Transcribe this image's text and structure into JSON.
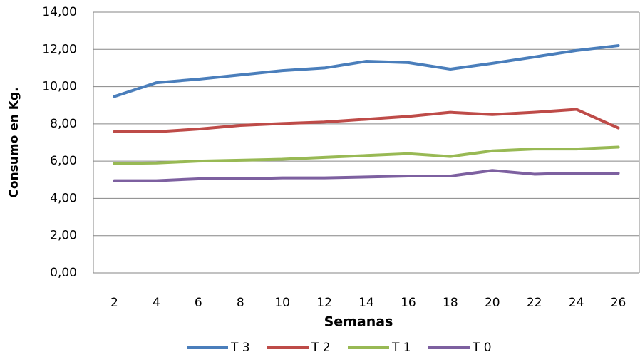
{
  "chart_data": {
    "type": "line",
    "x_label": "Semanas",
    "y_label": "Consumo en Kg.",
    "categories": [
      "2",
      "4",
      "6",
      "8",
      "10",
      "12",
      "14",
      "16",
      "18",
      "20",
      "22",
      "24",
      "26"
    ],
    "series": [
      {
        "name": "T 3",
        "color": "#4a7ebb",
        "values": [
          9.47,
          10.21,
          10.4,
          10.63,
          10.86,
          11.0,
          11.36,
          11.29,
          10.94,
          11.25,
          11.59,
          11.94,
          12.2
        ]
      },
      {
        "name": "T 2",
        "color": "#be4b48",
        "values": [
          7.58,
          7.58,
          7.72,
          7.92,
          8.02,
          8.1,
          8.25,
          8.4,
          8.62,
          8.5,
          8.62,
          8.78,
          7.78
        ]
      },
      {
        "name": "T 1",
        "color": "#98b954",
        "values": [
          5.87,
          5.9,
          6.0,
          6.05,
          6.1,
          6.2,
          6.3,
          6.4,
          6.25,
          6.55,
          6.65,
          6.65,
          6.75
        ]
      },
      {
        "name": "T 0",
        "color": "#7d60a0",
        "values": [
          4.95,
          4.95,
          5.05,
          5.05,
          5.1,
          5.1,
          5.15,
          5.2,
          5.2,
          5.5,
          5.3,
          5.35,
          5.35
        ]
      }
    ],
    "ylim": [
      0,
      14
    ],
    "yticks": [
      {
        "value": 0,
        "label": "0,00"
      },
      {
        "value": 2,
        "label": "2,00"
      },
      {
        "value": 4,
        "label": "4,00"
      },
      {
        "value": 6,
        "label": "6,00"
      },
      {
        "value": 8,
        "label": "8,00"
      },
      {
        "value": 10,
        "label": "10,00"
      },
      {
        "value": 12,
        "label": "12,00"
      },
      {
        "value": 14,
        "label": "14,00"
      }
    ],
    "grid": true,
    "legend": "bottom"
  }
}
